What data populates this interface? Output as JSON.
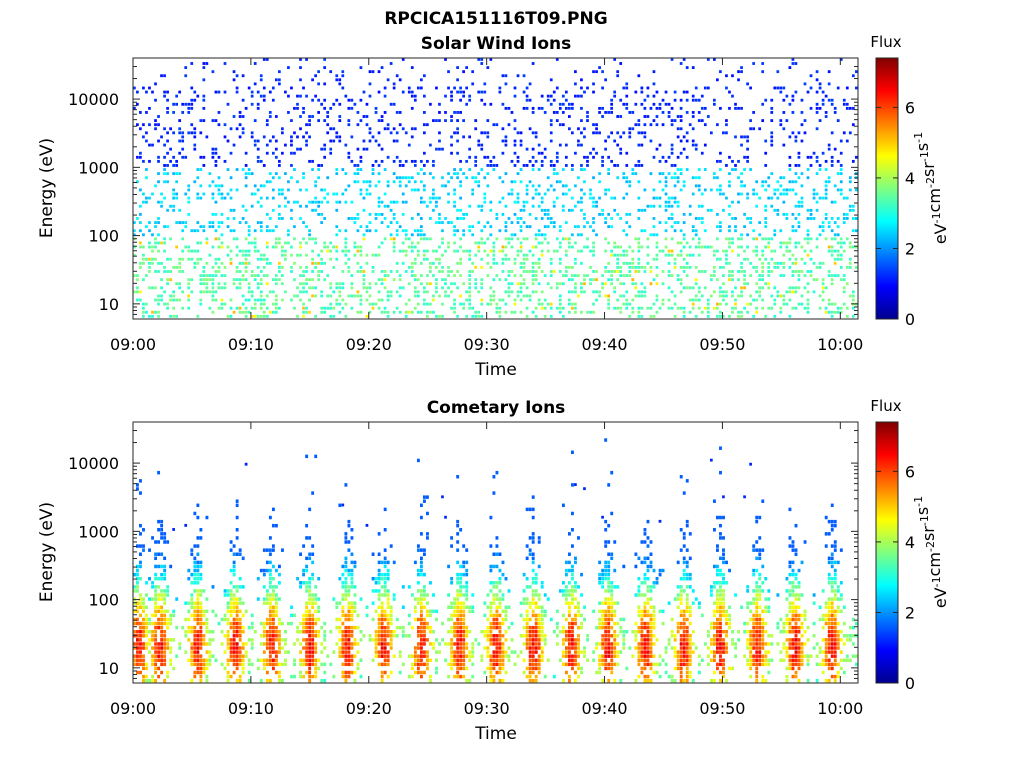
{
  "figure_title": "RPCICA151116T09.PNG",
  "colorbar": {
    "label": "Flux",
    "unit_base": "eV",
    "unit_parts": [
      {
        "t": "eV",
        "sup": "-1"
      },
      {
        "t": "cm",
        "sup": "-2"
      },
      {
        "t": "sr",
        "sup": "-1"
      },
      {
        "t": "s",
        "sup": "-1"
      }
    ],
    "ticks": [
      "0",
      "2",
      "4",
      "6"
    ],
    "range": [
      0,
      7.4
    ],
    "colormap": "jet"
  },
  "chart_data": [
    {
      "type": "heatmap",
      "title": "Solar Wind Ions",
      "xlabel": "Time",
      "ylabel": "Energy (eV)",
      "x_ticks": [
        "09:00",
        "09:10",
        "09:20",
        "09:30",
        "09:40",
        "09:50",
        "10:00"
      ],
      "x_range_minutes": [
        0,
        61.5
      ],
      "y_scale": "log",
      "y_range": [
        6,
        40000
      ],
      "y_ticks": [
        "10",
        "100",
        "1000",
        "10000"
      ],
      "description_values": {
        "flux_high_energy": 1.0,
        "flux_mid_energy": 2.2,
        "flux_low_energy": 3.0,
        "coverage_high": 0.18,
        "coverage_low": 0.32
      }
    },
    {
      "type": "heatmap",
      "title": "Cometary Ions",
      "xlabel": "Time",
      "ylabel": "Energy (eV)",
      "x_ticks": [
        "09:00",
        "09:10",
        "09:20",
        "09:30",
        "09:40",
        "09:50",
        "10:00"
      ],
      "x_range_minutes": [
        0,
        61.5
      ],
      "y_scale": "log",
      "y_range": [
        6,
        40000
      ],
      "y_ticks": [
        "10",
        "100",
        "1000",
        "10000"
      ],
      "burst_centers_minutes": [
        0.5,
        2.3,
        5.5,
        8.7,
        11.8,
        15.0,
        18.2,
        21.3,
        24.5,
        27.7,
        30.8,
        34.0,
        37.2,
        40.3,
        43.5,
        46.7,
        49.8,
        53.0,
        56.2,
        59.3
      ],
      "peak_flux": 6.0,
      "peak_energy_eV": 20
    }
  ]
}
